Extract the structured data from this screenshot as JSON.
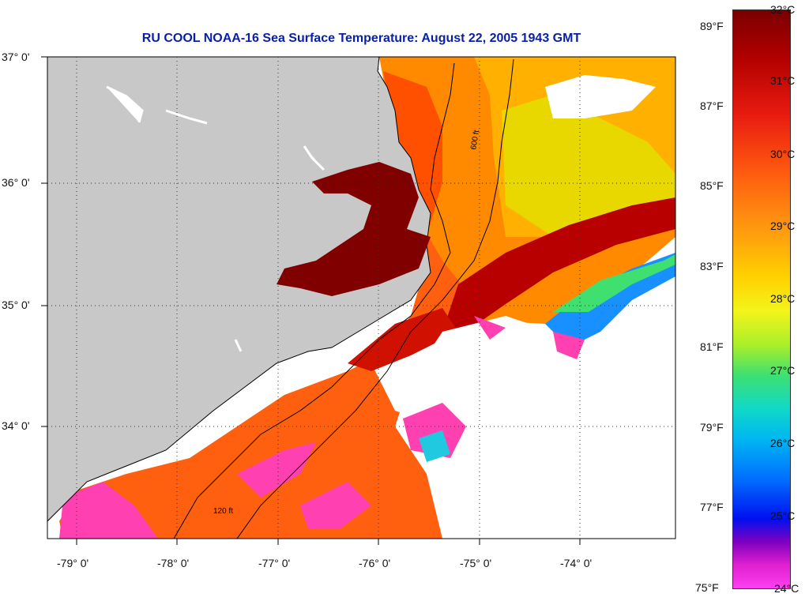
{
  "title": "RU COOL  NOAA-16  Sea Surface Temperature:  August 22, 2005 1943 GMT",
  "lat_labels": [
    "37° 0'",
    "36° 0'",
    "35° 0'",
    "34° 0'"
  ],
  "lon_labels": [
    "-79° 0'",
    "-78° 0'",
    "-77° 0'",
    "-76° 0'",
    "-75° 0'",
    "-74° 0'"
  ],
  "contours": {
    "c600": "600 ft",
    "c120": "120 ft"
  },
  "colorbar": {
    "fahrenheit": [
      "89°F",
      "87°F",
      "85°F",
      "83°F",
      "81°F",
      "79°F",
      "77°F",
      "75°F"
    ],
    "celsius": [
      "32°C",
      "31°C",
      "30°C",
      "29°C",
      "28°C",
      "27°C",
      "26°C",
      "25°C",
      "24°C"
    ]
  },
  "colors": {
    "land": "#c8c8c8",
    "ocean_land_missing": "#ffffff",
    "title": "#0a1fa8"
  }
}
